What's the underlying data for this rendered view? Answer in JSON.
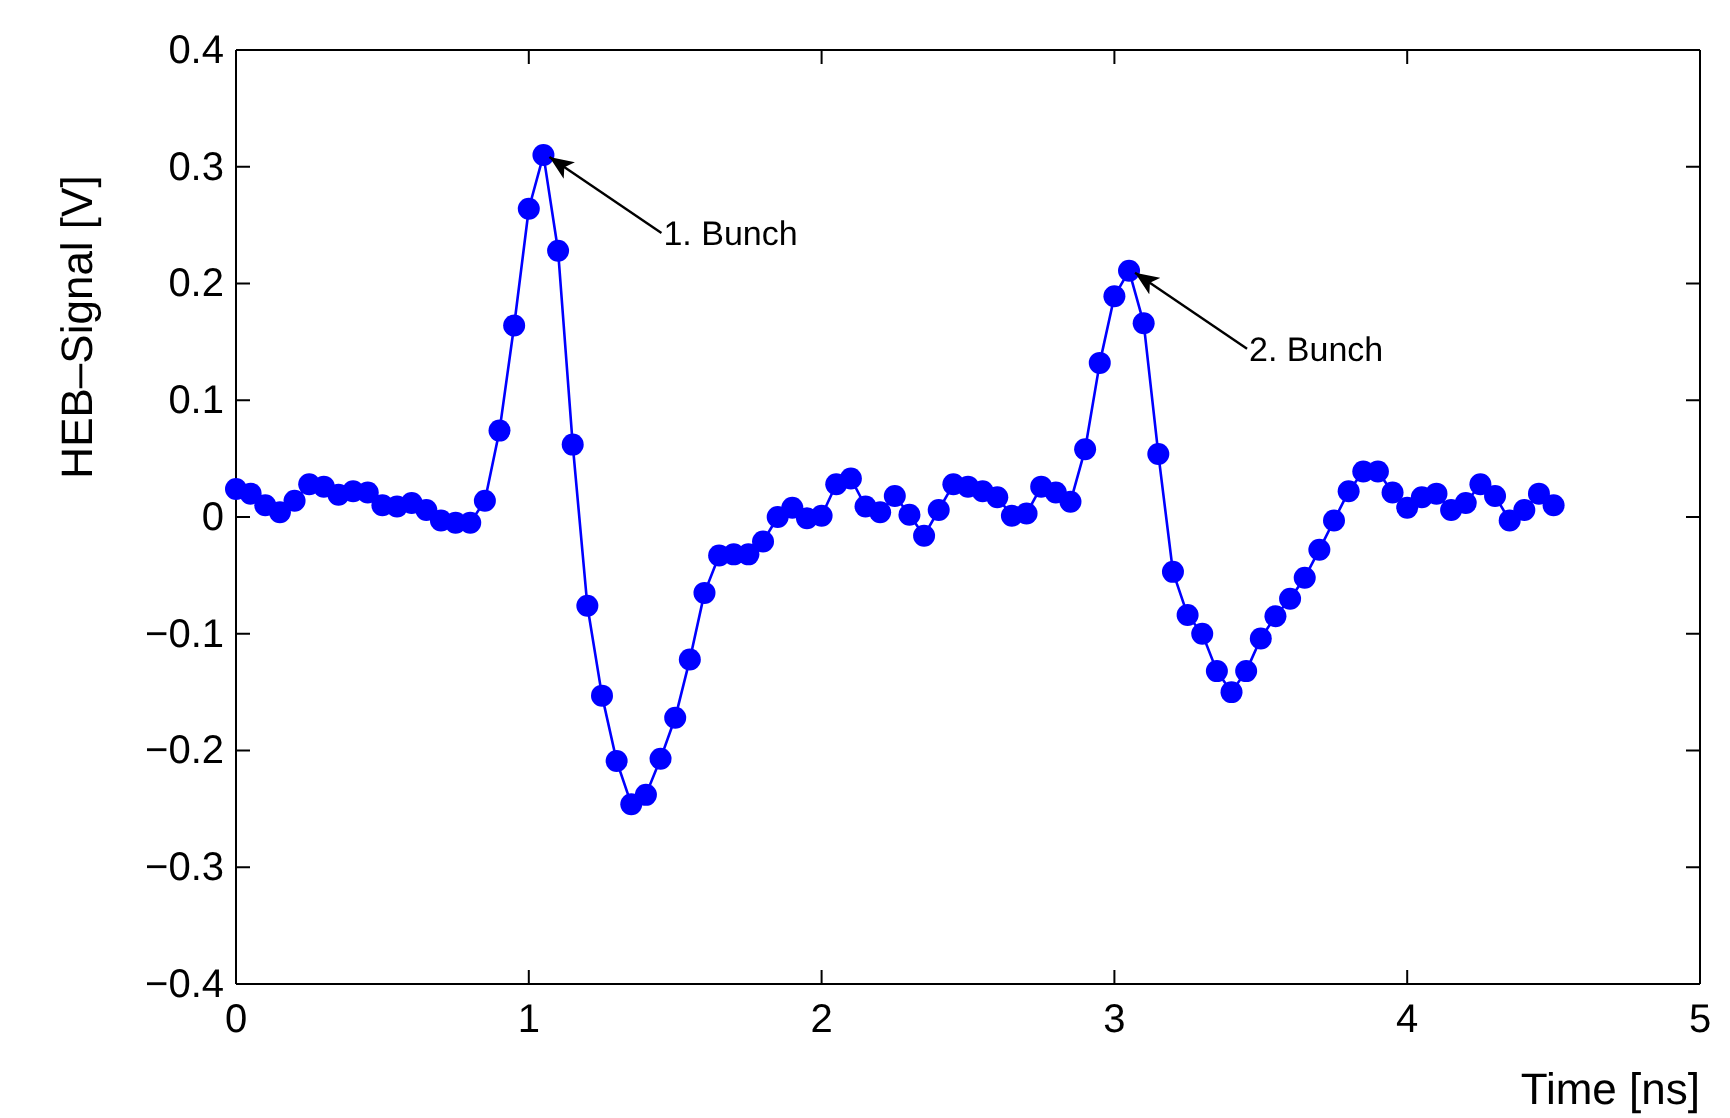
{
  "chart_data": {
    "type": "line",
    "xlabel": "Time [ns]",
    "ylabel": "HEB–Signal [V]",
    "xlim": [
      0,
      5
    ],
    "xticks": [
      0,
      1,
      2,
      3,
      4,
      5
    ],
    "ylim": [
      -0.4,
      0.4
    ],
    "yticks": [
      {
        "value": -0.4,
        "label": "−0.4"
      },
      {
        "value": -0.3,
        "label": "−0.3"
      },
      {
        "value": -0.2,
        "label": "−0.2"
      },
      {
        "value": -0.1,
        "label": "−0.1"
      },
      0,
      0.1,
      0.2,
      0.3,
      0.4
    ],
    "marker": "circle",
    "line_style": "solid",
    "grid": false,
    "annotations": [
      {
        "text": "1. Bunch",
        "x": 1.05,
        "y": 0.31
      },
      {
        "text": "2. Bunch",
        "x": 3.05,
        "y": 0.211
      }
    ],
    "series": [
      {
        "color": "#0000ff",
        "x": [
          0,
          0.05,
          0.1,
          0.15,
          0.2,
          0.25,
          0.3,
          0.35,
          0.4,
          0.45,
          0.5,
          0.55,
          0.6,
          0.65,
          0.7,
          0.75,
          0.8,
          0.85,
          0.9,
          0.95,
          1,
          1.05,
          1.1,
          1.15,
          1.2,
          1.25,
          1.3,
          1.35,
          1.4,
          1.45,
          1.5,
          1.55,
          1.6,
          1.65,
          1.7,
          1.75,
          1.8,
          1.85,
          1.9,
          1.95,
          2,
          2.05,
          2.1,
          2.15,
          2.2,
          2.25,
          2.3,
          2.35,
          2.4,
          2.45,
          2.5,
          2.55,
          2.6,
          2.65,
          2.7,
          2.75,
          2.8,
          2.85,
          2.9,
          2.95,
          3,
          3.05,
          3.1,
          3.15,
          3.2,
          3.25,
          3.3,
          3.35,
          3.4,
          3.45,
          3.5,
          3.55,
          3.6,
          3.65,
          3.7,
          3.75,
          3.8,
          3.85,
          3.9,
          3.95,
          4,
          4.05,
          4.1,
          4.15,
          4.2,
          4.25,
          4.3,
          4.35,
          4.4,
          4.45,
          4.5
        ],
        "values": [
          0.024,
          0.02,
          0.01,
          0.004,
          0.014,
          0.028,
          0.026,
          0.019,
          0.022,
          0.021,
          0.01,
          0.009,
          0.012,
          0.006,
          -0.003,
          -0.005,
          -0.005,
          0.014,
          0.074,
          0.164,
          0.264,
          0.31,
          0.228,
          0.062,
          -0.076,
          -0.153,
          -0.209,
          -0.246,
          -0.238,
          -0.207,
          -0.172,
          -0.122,
          -0.065,
          -0.033,
          -0.032,
          -0.032,
          -0.021,
          0,
          0.008,
          -0.001,
          0.001,
          0.028,
          0.033,
          0.009,
          0.004,
          0.018,
          0.002,
          -0.016,
          0.006,
          0.028,
          0.026,
          0.022,
          0.017,
          0.001,
          0.003,
          0.026,
          0.021,
          0.013,
          0.058,
          0.132,
          0.189,
          0.211,
          0.166,
          0.054,
          -0.047,
          -0.084,
          -0.1,
          -0.132,
          -0.15,
          -0.132,
          -0.104,
          -0.085,
          -0.07,
          -0.052,
          -0.028,
          -0.003,
          0.022,
          0.039,
          0.039,
          0.021,
          0.008,
          0.017,
          0.02,
          0.006,
          0.012,
          0.028,
          0.018,
          -0.003,
          0.006,
          0.02,
          0.01
        ]
      }
    ]
  }
}
